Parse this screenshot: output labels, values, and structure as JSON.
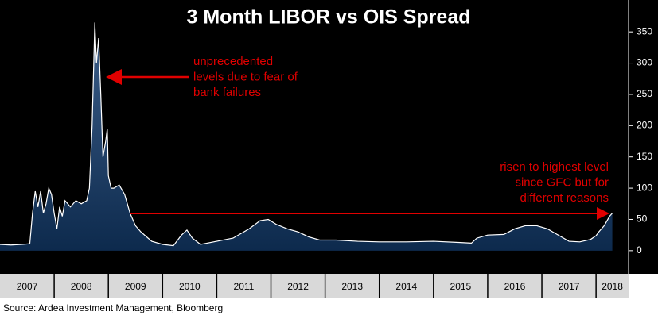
{
  "chart_data": {
    "type": "area",
    "title": "3 Month LIBOR vs OIS Spread",
    "source": "Source: Ardea Investment Management, Bloomberg",
    "annotations": [
      [
        "unprecedented",
        "levels due to fear of",
        "bank failures"
      ],
      [
        "risen to highest level",
        "since GFC but for",
        "different reasons"
      ]
    ],
    "color": "#ffffff",
    "fill": "#0d2a4d",
    "xlim": [
      2007,
      2018.6
    ],
    "xticks": [
      2007,
      2008,
      2009,
      2010,
      2011,
      2012,
      2013,
      2014,
      2015,
      2016,
      2017,
      2018
    ],
    "ylim": [
      -37,
      401
    ],
    "yticks": [
      0,
      50,
      100,
      150,
      200,
      250,
      300,
      350
    ],
    "x": [
      2007.0,
      2007.2,
      2007.4,
      2007.55,
      2007.6,
      2007.65,
      2007.7,
      2007.75,
      2007.8,
      2007.85,
      2007.9,
      2007.95,
      2008.0,
      2008.05,
      2008.1,
      2008.15,
      2008.2,
      2008.3,
      2008.4,
      2008.5,
      2008.6,
      2008.65,
      2008.7,
      2008.75,
      2008.78,
      2008.82,
      2008.86,
      2008.9,
      2008.95,
      2008.98,
      2009.0,
      2009.05,
      2009.1,
      2009.2,
      2009.3,
      2009.4,
      2009.5,
      2009.6,
      2009.8,
      2010.0,
      2010.2,
      2010.35,
      2010.45,
      2010.55,
      2010.7,
      2011.0,
      2011.3,
      2011.6,
      2011.8,
      2011.95,
      2012.1,
      2012.3,
      2012.5,
      2012.7,
      2012.9,
      2013.2,
      2013.6,
      2014.0,
      2014.5,
      2015.0,
      2015.5,
      2015.7,
      2015.8,
      2016.0,
      2016.3,
      2016.5,
      2016.7,
      2016.9,
      2017.1,
      2017.3,
      2017.5,
      2017.7,
      2017.9,
      2018.0,
      2018.05,
      2018.15,
      2018.25,
      2018.3
    ],
    "values": [
      10,
      9,
      10,
      11,
      60,
      95,
      70,
      95,
      60,
      75,
      100,
      90,
      60,
      35,
      70,
      55,
      80,
      70,
      80,
      75,
      80,
      100,
      200,
      365,
      300,
      340,
      250,
      150,
      175,
      195,
      120,
      100,
      100,
      105,
      90,
      60,
      40,
      30,
      15,
      10,
      8,
      25,
      33,
      20,
      10,
      15,
      20,
      35,
      48,
      50,
      42,
      35,
      30,
      22,
      17,
      17,
      15,
      14,
      14,
      15,
      13,
      12,
      20,
      25,
      26,
      35,
      40,
      40,
      35,
      25,
      15,
      14,
      18,
      24,
      30,
      40,
      55,
      60
    ]
  }
}
